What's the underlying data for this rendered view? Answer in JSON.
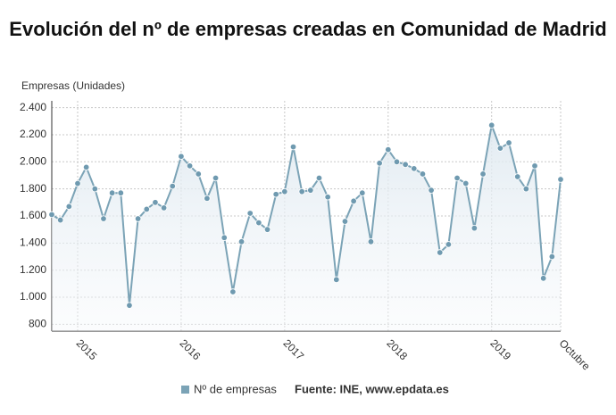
{
  "chart_data": {
    "type": "line",
    "title": "Evolución del nº de empresas creadas en Comunidad de Madrid",
    "y_axis_label": "Empresas (Unidades)",
    "source": "Fuente: INE, www.epdata.es",
    "categories": [
      null,
      null,
      null,
      "2015",
      null,
      null,
      null,
      null,
      null,
      null,
      null,
      null,
      null,
      null,
      null,
      "2016",
      null,
      null,
      null,
      null,
      null,
      null,
      null,
      null,
      null,
      null,
      null,
      "2017",
      null,
      null,
      null,
      null,
      null,
      null,
      null,
      null,
      null,
      null,
      null,
      "2018",
      null,
      null,
      null,
      null,
      null,
      null,
      null,
      null,
      null,
      null,
      null,
      "2019",
      null,
      null,
      null,
      null,
      null,
      null,
      null,
      "Octubre"
    ],
    "series": [
      {
        "name": "Nº de empresas",
        "color": "#7ba3b6",
        "values": [
          1610,
          1570,
          1670,
          1840,
          1960,
          1800,
          1580,
          1770,
          1770,
          940,
          1580,
          1650,
          1700,
          1660,
          1820,
          2040,
          1970,
          1910,
          1730,
          1880,
          1440,
          1040,
          1410,
          1620,
          1550,
          1500,
          1760,
          1780,
          2110,
          1780,
          1790,
          1880,
          1740,
          1130,
          1560,
          1710,
          1770,
          1410,
          1990,
          2090,
          2000,
          1980,
          1950,
          1910,
          1790,
          1330,
          1390,
          1880,
          1840,
          1510,
          1910,
          2270,
          2100,
          2140,
          1890,
          1800,
          1970,
          1140,
          1300,
          1870
        ]
      }
    ],
    "ylim": [
      750,
      2450
    ],
    "yticks": [
      {
        "value": 800,
        "label": "800"
      },
      {
        "value": 1000,
        "label": "1.000"
      },
      {
        "value": 1200,
        "label": "1.200"
      },
      {
        "value": 1400,
        "label": "1.400"
      },
      {
        "value": 1600,
        "label": "1.600"
      },
      {
        "value": 1800,
        "label": "1.800"
      },
      {
        "value": 2000,
        "label": "2.000"
      },
      {
        "value": 2200,
        "label": "2.200"
      },
      {
        "value": 2400,
        "label": "2.400"
      }
    ],
    "grid": true
  }
}
